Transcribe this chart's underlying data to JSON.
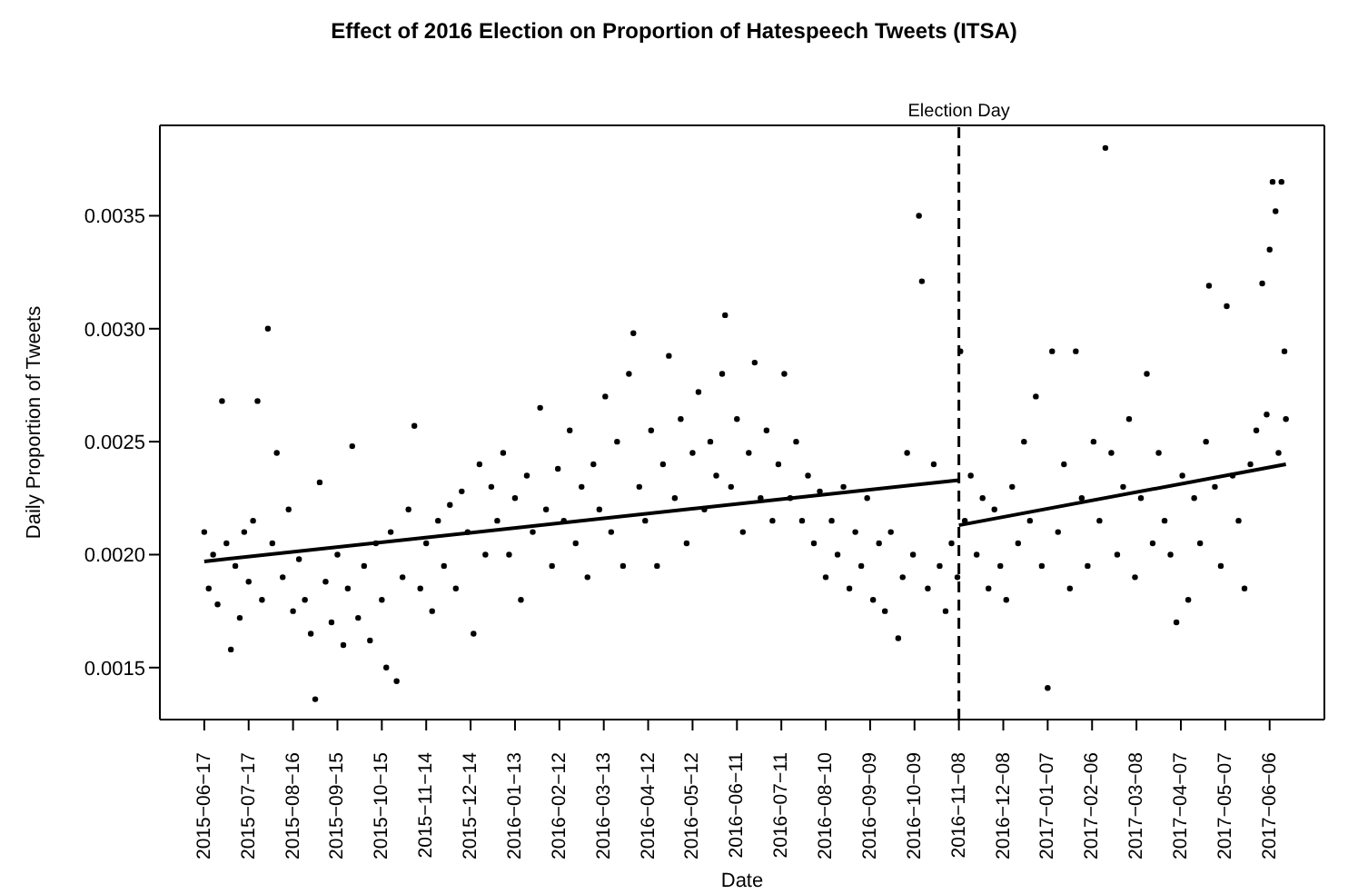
{
  "chart_data": {
    "type": "scatter",
    "title": "Effect of 2016 Election on Proportion of Hatespeech Tweets (ITSA)",
    "xlabel": "Date",
    "ylabel": "Daily Proportion of Tweets",
    "xlim": [
      "2015-05-18",
      "2017-07-13"
    ],
    "ylim": [
      0.00127,
      0.0039
    ],
    "xticks": [
      {
        "value": "2015-06-17",
        "label": "2015−06−17"
      },
      {
        "value": "2015-07-17",
        "label": "2015−07−17"
      },
      {
        "value": "2015-08-16",
        "label": "2015−08−16"
      },
      {
        "value": "2015-09-15",
        "label": "2015−09−15"
      },
      {
        "value": "2015-10-15",
        "label": "2015−10−15"
      },
      {
        "value": "2015-11-14",
        "label": "2015−11−14"
      },
      {
        "value": "2015-12-14",
        "label": "2015−12−14"
      },
      {
        "value": "2016-01-13",
        "label": "2016−01−13"
      },
      {
        "value": "2016-02-12",
        "label": "2016−02−12"
      },
      {
        "value": "2016-03-13",
        "label": "2016−03−13"
      },
      {
        "value": "2016-04-12",
        "label": "2016−04−12"
      },
      {
        "value": "2016-05-12",
        "label": "2016−05−12"
      },
      {
        "value": "2016-06-11",
        "label": "2016−06−11"
      },
      {
        "value": "2016-07-11",
        "label": "2016−07−11"
      },
      {
        "value": "2016-08-10",
        "label": "2016−08−10"
      },
      {
        "value": "2016-09-09",
        "label": "2016−09−09"
      },
      {
        "value": "2016-10-09",
        "label": "2016−10−09"
      },
      {
        "value": "2016-11-08",
        "label": "2016−11−08"
      },
      {
        "value": "2016-12-08",
        "label": "2016−12−08"
      },
      {
        "value": "2017-01-07",
        "label": "2017−01−07"
      },
      {
        "value": "2017-02-06",
        "label": "2017−02−06"
      },
      {
        "value": "2017-03-08",
        "label": "2017−03−08"
      },
      {
        "value": "2017-04-07",
        "label": "2017−04−07"
      },
      {
        "value": "2017-05-07",
        "label": "2017−05−07"
      },
      {
        "value": "2017-06-06",
        "label": "2017−06−06"
      }
    ],
    "yticks": [
      {
        "value": 0.0015,
        "label": "0.0015"
      },
      {
        "value": 0.002,
        "label": "0.0020"
      },
      {
        "value": 0.0025,
        "label": "0.0025"
      },
      {
        "value": 0.003,
        "label": "0.0030"
      },
      {
        "value": 0.0035,
        "label": "0.0035"
      }
    ],
    "ref_lines": [
      {
        "axis": "x",
        "value": "2016-11-08",
        "label": "Election Day",
        "color": "#000000",
        "line_style": "dashed"
      }
    ],
    "series": [
      {
        "marker": "circle",
        "color": "#000000",
        "x": [
          "2015-06-17",
          "2015-06-20",
          "2015-06-23",
          "2015-06-26",
          "2015-06-29",
          "2015-07-02",
          "2015-07-05",
          "2015-07-08",
          "2015-07-11",
          "2015-07-14",
          "2015-07-17",
          "2015-07-20",
          "2015-07-23",
          "2015-07-26",
          "2015-07-30",
          "2015-08-02",
          "2015-08-05",
          "2015-08-09",
          "2015-08-13",
          "2015-08-16",
          "2015-08-20",
          "2015-08-24",
          "2015-08-28",
          "2015-08-31",
          "2015-09-03",
          "2015-09-07",
          "2015-09-11",
          "2015-09-15",
          "2015-09-19",
          "2015-09-22",
          "2015-09-25",
          "2015-09-29",
          "2015-10-03",
          "2015-10-07",
          "2015-10-11",
          "2015-10-15",
          "2015-10-18",
          "2015-10-21",
          "2015-10-25",
          "2015-10-29",
          "2015-11-02",
          "2015-11-06",
          "2015-11-10",
          "2015-11-14",
          "2015-11-18",
          "2015-11-22",
          "2015-11-26",
          "2015-11-30",
          "2015-12-04",
          "2015-12-08",
          "2015-12-12",
          "2015-12-16",
          "2015-12-20",
          "2015-12-24",
          "2015-12-28",
          "2016-01-01",
          "2016-01-05",
          "2016-01-09",
          "2016-01-13",
          "2016-01-17",
          "2016-01-21",
          "2016-01-25",
          "2016-01-30",
          "2016-02-03",
          "2016-02-07",
          "2016-02-11",
          "2016-02-15",
          "2016-02-19",
          "2016-02-23",
          "2016-02-27",
          "2016-03-02",
          "2016-03-06",
          "2016-03-10",
          "2016-03-14",
          "2016-03-18",
          "2016-03-22",
          "2016-03-26",
          "2016-03-30",
          "2016-04-02",
          "2016-04-06",
          "2016-04-10",
          "2016-04-14",
          "2016-04-18",
          "2016-04-22",
          "2016-04-26",
          "2016-04-30",
          "2016-05-04",
          "2016-05-08",
          "2016-05-12",
          "2016-05-16",
          "2016-05-20",
          "2016-05-24",
          "2016-05-28",
          "2016-06-01",
          "2016-06-03",
          "2016-06-07",
          "2016-06-11",
          "2016-06-15",
          "2016-06-19",
          "2016-06-23",
          "2016-06-27",
          "2016-07-01",
          "2016-07-05",
          "2016-07-09",
          "2016-07-13",
          "2016-07-17",
          "2016-07-21",
          "2016-07-25",
          "2016-07-29",
          "2016-08-02",
          "2016-08-06",
          "2016-08-10",
          "2016-08-14",
          "2016-08-18",
          "2016-08-22",
          "2016-08-26",
          "2016-08-30",
          "2016-09-03",
          "2016-09-07",
          "2016-09-11",
          "2016-09-15",
          "2016-09-19",
          "2016-09-23",
          "2016-09-28",
          "2016-10-01",
          "2016-10-04",
          "2016-10-08",
          "2016-10-12",
          "2016-10-14",
          "2016-10-18",
          "2016-10-22",
          "2016-10-26",
          "2016-10-30",
          "2016-11-03",
          "2016-11-07",
          "2016-11-09",
          "2016-11-12",
          "2016-11-16",
          "2016-11-20",
          "2016-11-24",
          "2016-11-28",
          "2016-12-02",
          "2016-12-06",
          "2016-12-10",
          "2016-12-14",
          "2016-12-18",
          "2016-12-22",
          "2016-12-26",
          "2016-12-30",
          "2017-01-03",
          "2017-01-07",
          "2017-01-10",
          "2017-01-14",
          "2017-01-18",
          "2017-01-22",
          "2017-01-26",
          "2017-01-30",
          "2017-02-03",
          "2017-02-07",
          "2017-02-11",
          "2017-02-15",
          "2017-02-19",
          "2017-02-23",
          "2017-02-27",
          "2017-03-03",
          "2017-03-07",
          "2017-03-11",
          "2017-03-15",
          "2017-03-19",
          "2017-03-23",
          "2017-03-27",
          "2017-03-31",
          "2017-04-04",
          "2017-04-08",
          "2017-04-12",
          "2017-04-16",
          "2017-04-20",
          "2017-04-24",
          "2017-04-26",
          "2017-04-30",
          "2017-05-04",
          "2017-05-08",
          "2017-05-12",
          "2017-05-16",
          "2017-05-20",
          "2017-05-24",
          "2017-05-28",
          "2017-06-01",
          "2017-06-04",
          "2017-06-06",
          "2017-06-08",
          "2017-06-10",
          "2017-06-12",
          "2017-06-14",
          "2017-06-16",
          "2017-06-17"
        ],
        "values": [
          0.0021,
          0.00185,
          0.002,
          0.00178,
          0.00268,
          0.00205,
          0.00158,
          0.00195,
          0.00172,
          0.0021,
          0.00188,
          0.00215,
          0.00268,
          0.0018,
          0.003,
          0.00205,
          0.00245,
          0.0019,
          0.0022,
          0.00175,
          0.00198,
          0.0018,
          0.00165,
          0.00136,
          0.00232,
          0.00188,
          0.0017,
          0.002,
          0.0016,
          0.00185,
          0.00248,
          0.00172,
          0.00195,
          0.00162,
          0.00205,
          0.0018,
          0.0015,
          0.0021,
          0.00144,
          0.0019,
          0.0022,
          0.00257,
          0.00185,
          0.00205,
          0.00175,
          0.00215,
          0.00195,
          0.00222,
          0.00185,
          0.00228,
          0.0021,
          0.00165,
          0.0024,
          0.002,
          0.0023,
          0.00215,
          0.00245,
          0.002,
          0.00225,
          0.0018,
          0.00235,
          0.0021,
          0.00265,
          0.0022,
          0.00195,
          0.00238,
          0.00215,
          0.00255,
          0.00205,
          0.0023,
          0.0019,
          0.0024,
          0.0022,
          0.0027,
          0.0021,
          0.0025,
          0.00195,
          0.0028,
          0.00298,
          0.0023,
          0.00215,
          0.00255,
          0.00195,
          0.0024,
          0.00288,
          0.00225,
          0.0026,
          0.00205,
          0.00245,
          0.00272,
          0.0022,
          0.0025,
          0.00235,
          0.0028,
          0.00306,
          0.0023,
          0.0026,
          0.0021,
          0.00245,
          0.00285,
          0.00225,
          0.00255,
          0.00215,
          0.0024,
          0.0028,
          0.00225,
          0.0025,
          0.00215,
          0.00235,
          0.00205,
          0.00228,
          0.0019,
          0.00215,
          0.002,
          0.0023,
          0.00185,
          0.0021,
          0.00195,
          0.00225,
          0.0018,
          0.00205,
          0.00175,
          0.0021,
          0.00163,
          0.0019,
          0.00245,
          0.002,
          0.0035,
          0.00321,
          0.00185,
          0.0024,
          0.00195,
          0.00175,
          0.00205,
          0.0019,
          0.0029,
          0.00215,
          0.00235,
          0.002,
          0.00225,
          0.00185,
          0.0022,
          0.00195,
          0.0018,
          0.0023,
          0.00205,
          0.0025,
          0.00215,
          0.0027,
          0.00195,
          0.00141,
          0.0029,
          0.0021,
          0.0024,
          0.00185,
          0.0029,
          0.00225,
          0.00195,
          0.0025,
          0.00215,
          0.0038,
          0.00245,
          0.002,
          0.0023,
          0.0026,
          0.0019,
          0.00225,
          0.0028,
          0.00205,
          0.00245,
          0.00215,
          0.002,
          0.0017,
          0.00235,
          0.0018,
          0.00225,
          0.00205,
          0.0025,
          0.00319,
          0.0023,
          0.00195,
          0.0031,
          0.00235,
          0.00215,
          0.00185,
          0.0024,
          0.00255,
          0.0032,
          0.00262,
          0.00335,
          0.00365,
          0.00352,
          0.00245,
          0.00365,
          0.0029,
          0.0026
        ]
      },
      {
        "type": "line",
        "marker": "none",
        "color": "#000000",
        "x": [
          "2015-06-17",
          "2016-11-08"
        ],
        "values": [
          0.00197,
          0.00233
        ]
      },
      {
        "type": "line",
        "marker": "none",
        "color": "#000000",
        "x": [
          "2016-11-08",
          "2017-06-17"
        ],
        "values": [
          0.00213,
          0.0024
        ]
      }
    ]
  }
}
